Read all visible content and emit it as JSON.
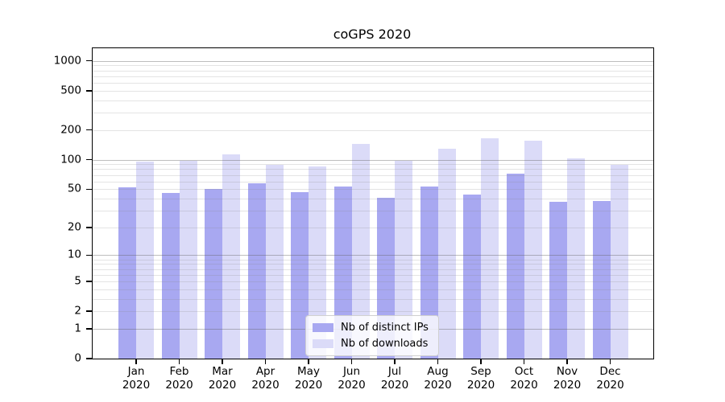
{
  "chart_data": {
    "type": "bar",
    "title": "coGPS 2020",
    "x_tick_labels": [
      [
        "Jan",
        "2020"
      ],
      [
        "Feb",
        "2020"
      ],
      [
        "Mar",
        "2020"
      ],
      [
        "Apr",
        "2020"
      ],
      [
        "May",
        "2020"
      ],
      [
        "Jun",
        "2020"
      ],
      [
        "Jul",
        "2020"
      ],
      [
        "Aug",
        "2020"
      ],
      [
        "Sep",
        "2020"
      ],
      [
        "Oct",
        "2020"
      ],
      [
        "Nov",
        "2020"
      ],
      [
        "Dec",
        "2020"
      ]
    ],
    "series": [
      {
        "name": "Nb of distinct IPs",
        "color": "#a8a8f1",
        "values": [
          52,
          46,
          50,
          57,
          47,
          53,
          41,
          53,
          44,
          72,
          37,
          38
        ]
      },
      {
        "name": "Nb of downloads",
        "color": "#dbdbf8",
        "values": [
          95,
          97,
          113,
          88,
          85,
          145,
          98,
          130,
          165,
          155,
          103,
          89
        ]
      }
    ],
    "y_scale": "log10(value+1)",
    "y_tick_values": [
      0,
      1,
      2,
      5,
      10,
      20,
      50,
      100,
      200,
      500,
      1000
    ],
    "ylim": [
      0,
      1342
    ],
    "grid": {
      "major_values": [
        1,
        10,
        100,
        1000
      ],
      "minor_values": [
        2,
        3,
        4,
        5,
        6,
        7,
        8,
        9,
        20,
        30,
        40,
        50,
        60,
        70,
        80,
        90,
        200,
        300,
        400,
        500,
        600,
        700,
        800,
        900
      ]
    },
    "legend": {
      "position": "lower-center",
      "frame": true
    },
    "colors": {
      "axis": "#000000",
      "major_grid": "#bdbdbd",
      "minor_grid": "#e9e9e9",
      "background": "#ffffff"
    }
  }
}
